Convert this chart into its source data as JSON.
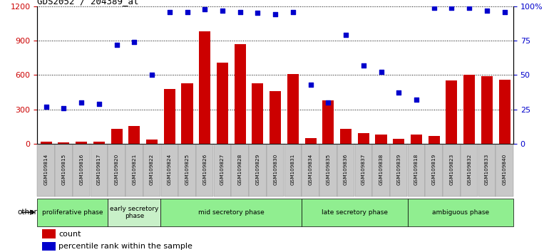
{
  "title": "GDS2052 / 204389_at",
  "categories": [
    "GSM109814",
    "GSM109815",
    "GSM109816",
    "GSM109817",
    "GSM109820",
    "GSM109821",
    "GSM109822",
    "GSM109824",
    "GSM109825",
    "GSM109826",
    "GSM109827",
    "GSM109828",
    "GSM109829",
    "GSM109830",
    "GSM109831",
    "GSM109834",
    "GSM109835",
    "GSM109836",
    "GSM109837",
    "GSM109838",
    "GSM109839",
    "GSM109818",
    "GSM109819",
    "GSM109823",
    "GSM109832",
    "GSM109833",
    "GSM109840"
  ],
  "count": [
    15,
    10,
    20,
    15,
    130,
    155,
    35,
    480,
    530,
    980,
    710,
    870,
    530,
    460,
    610,
    50,
    380,
    130,
    95,
    80,
    40,
    80,
    70,
    550,
    600,
    590,
    560
  ],
  "percentile": [
    27,
    26,
    30,
    29,
    72,
    74,
    50,
    96,
    96,
    98,
    97,
    96,
    95,
    94,
    96,
    43,
    30,
    79,
    57,
    52,
    37,
    32,
    99,
    99,
    99,
    97,
    96
  ],
  "bar_color": "#cc0000",
  "dot_color": "#0000cc",
  "phases": [
    {
      "label": "proliferative phase",
      "start": 0,
      "end": 4,
      "color": "#90ee90"
    },
    {
      "label": "early secretory\nphase",
      "start": 4,
      "end": 7,
      "color": "#c8f0c8"
    },
    {
      "label": "mid secretory phase",
      "start": 7,
      "end": 15,
      "color": "#90ee90"
    },
    {
      "label": "late secretory phase",
      "start": 15,
      "end": 21,
      "color": "#90ee90"
    },
    {
      "label": "ambiguous phase",
      "start": 21,
      "end": 27,
      "color": "#90ee90"
    }
  ],
  "ylim_left": [
    0,
    1200
  ],
  "ylim_right": [
    0,
    100
  ],
  "yticks_left": [
    0,
    300,
    600,
    900,
    1200
  ],
  "yticks_right": [
    0,
    25,
    50,
    75,
    100
  ],
  "bar_color_label": "count",
  "dot_color_label": "percentile rank within the sample",
  "right_tick_labels": [
    "0",
    "25",
    "50",
    "75",
    "100%"
  ]
}
